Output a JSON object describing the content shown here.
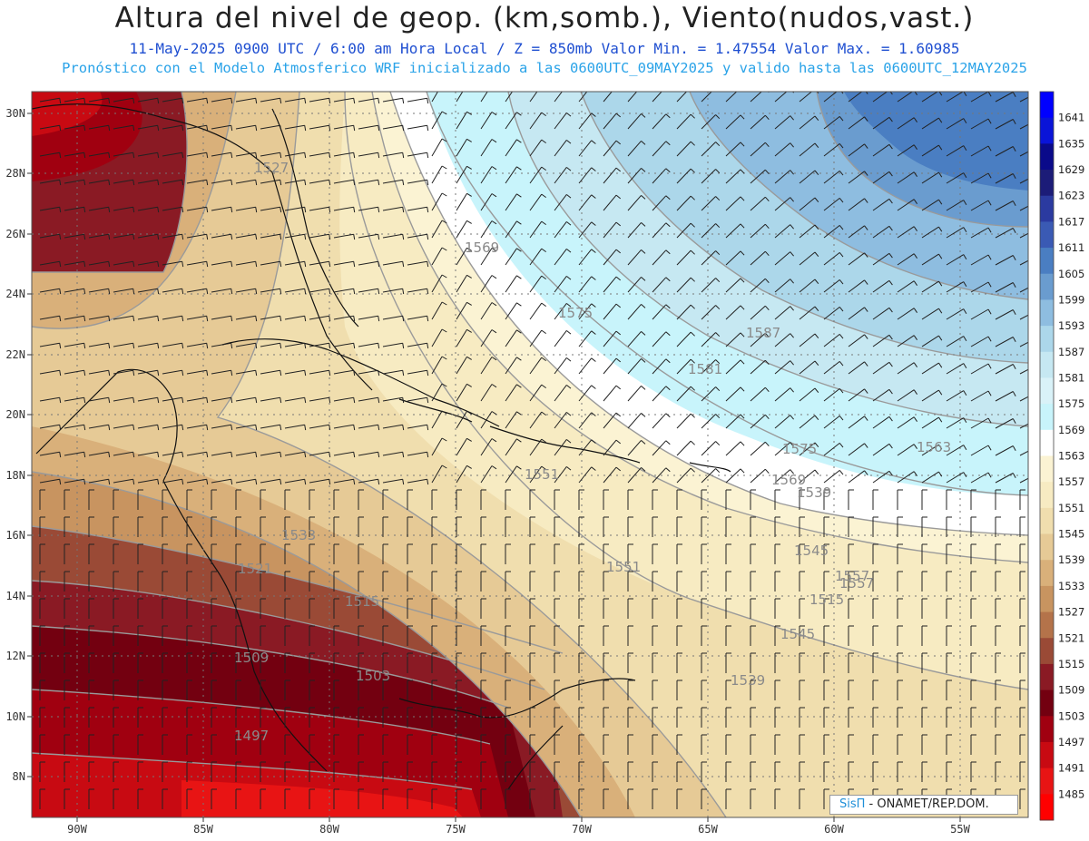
{
  "header": {
    "title": "Altura del nivel de geop. (km,somb.), Viento(nudos,vast.)",
    "subtitle1": "11-May-2025  0900 UTC / 6:00 am Hora Local / Z = 850mb     Valor Min. = 1.47554  Valor Max. = 1.60985",
    "subtitle2": "Pronóstico con el Modelo Atmosferico WRF inicializado a las 0600UTC_09MAY2025 y valido hasta las  0600UTC_12MAY2025"
  },
  "map": {
    "lon_ticks": [
      "90W",
      "85W",
      "80W",
      "75W",
      "70W",
      "65W",
      "60W",
      "55W"
    ],
    "lat_ticks": [
      "30N",
      "28N",
      "26N",
      "24N",
      "22N",
      "20N",
      "18N",
      "16N",
      "14N",
      "12N",
      "10N",
      "8N"
    ],
    "contour_labels": [
      {
        "text": "1569"
      },
      {
        "text": "1575"
      },
      {
        "text": "1587"
      },
      {
        "text": "1581"
      },
      {
        "text": "1575"
      },
      {
        "text": "1569"
      },
      {
        "text": "1563"
      },
      {
        "text": "1557"
      },
      {
        "text": "1551"
      },
      {
        "text": "1545"
      },
      {
        "text": "1539"
      },
      {
        "text": "1533"
      },
      {
        "text": "1527"
      },
      {
        "text": "1521"
      },
      {
        "text": "1515"
      },
      {
        "text": "1509"
      },
      {
        "text": "1503"
      },
      {
        "text": "1497"
      },
      {
        "text": "1539"
      },
      {
        "text": "1545"
      },
      {
        "text": "1551"
      },
      {
        "text": "1557"
      },
      {
        "text": "1515"
      }
    ]
  },
  "colorbar": {
    "levels": [
      {
        "label": "1641",
        "color": "#0000ff"
      },
      {
        "label": "1635",
        "color": "#0a14d8"
      },
      {
        "label": "1629",
        "color": "#0a0a8a"
      },
      {
        "label": "1623",
        "color": "#1c1c78"
      },
      {
        "label": "1617",
        "color": "#2b3aa0"
      },
      {
        "label": "1611",
        "color": "#3a5ab4"
      },
      {
        "label": "1605",
        "color": "#4a7ec2"
      },
      {
        "label": "1599",
        "color": "#6a9ccf"
      },
      {
        "label": "1593",
        "color": "#8ebde0"
      },
      {
        "label": "1587",
        "color": "#acd7ea"
      },
      {
        "label": "1581",
        "color": "#c6e8f2"
      },
      {
        "label": "1575",
        "color": "#d9f2f8"
      },
      {
        "label": "1569",
        "color": "#c8f4fb"
      },
      {
        "label": "1563",
        "color": "#ffffff"
      },
      {
        "label": "1557",
        "color": "#fbf3d3"
      },
      {
        "label": "1551",
        "color": "#f7ebc2"
      },
      {
        "label": "1545",
        "color": "#f0deae"
      },
      {
        "label": "1539",
        "color": "#e6ca96"
      },
      {
        "label": "1533",
        "color": "#d9b07a"
      },
      {
        "label": "1527",
        "color": "#c89460"
      },
      {
        "label": "1521",
        "color": "#b4734a"
      },
      {
        "label": "1515",
        "color": "#9a4a36"
      },
      {
        "label": "1509",
        "color": "#8a1a24"
      },
      {
        "label": "1503",
        "color": "#730010"
      },
      {
        "label": "1497",
        "color": "#a00010"
      },
      {
        "label": "1491",
        "color": "#c80a12"
      },
      {
        "label": "1485",
        "color": "#e81414"
      },
      {
        "label": "",
        "color": "#ff0000"
      }
    ]
  },
  "credit": {
    "brand": "SisΠ",
    "text": " - ONAMET/REP.DOM."
  }
}
